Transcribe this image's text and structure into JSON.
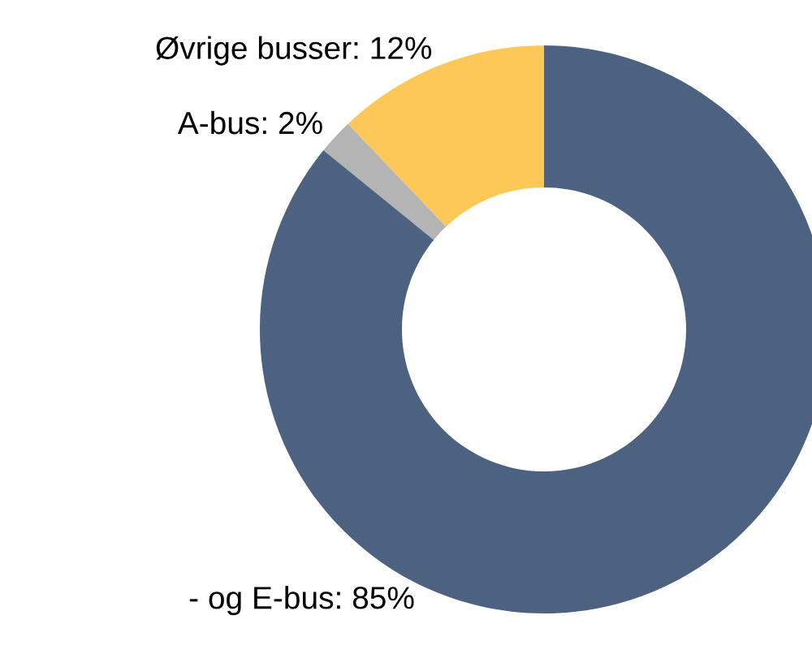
{
  "chart_data": {
    "type": "donut",
    "categories": [
      "Øvrige busser",
      "A-bus",
      "- og E-bus"
    ],
    "values": [
      12,
      2,
      85
    ],
    "colors": [
      "#fdc857",
      "#b4b4b4",
      "#4d6280"
    ],
    "value_labels": [
      ": 12%",
      ": 2%",
      ": 85%"
    ],
    "legend": false
  }
}
